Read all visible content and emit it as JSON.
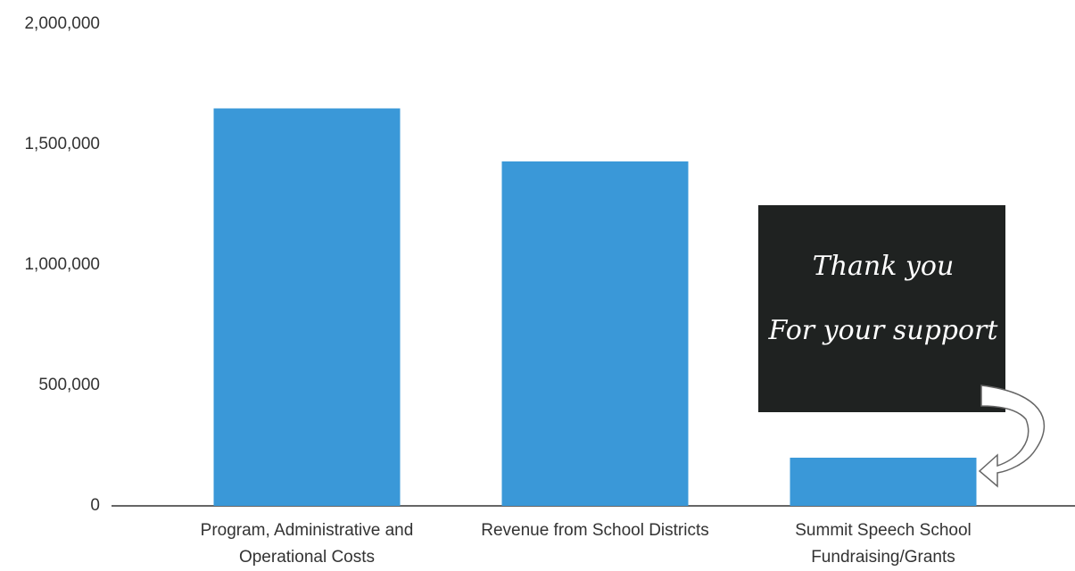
{
  "chart_data": {
    "type": "bar",
    "categories": [
      "Program, Administrative and Operational Costs",
      "Revenue from School Districts",
      "Summit Speech School Fundraising/Grants"
    ],
    "values": [
      1650000,
      1430000,
      200000
    ],
    "color": "#3a98d8",
    "ylim": [
      0,
      2000000
    ],
    "yticks": [
      0,
      {
        "value": 500000,
        "label": "500,000"
      },
      {
        "value": 1000000,
        "label": "1,000,000"
      },
      {
        "value": 1500000,
        "label": "1,500,000"
      },
      {
        "value": 2000000,
        "label": "2,000,000"
      }
    ],
    "grid": false,
    "annotation_lines": [
      "Thank you",
      "For your support"
    ]
  }
}
